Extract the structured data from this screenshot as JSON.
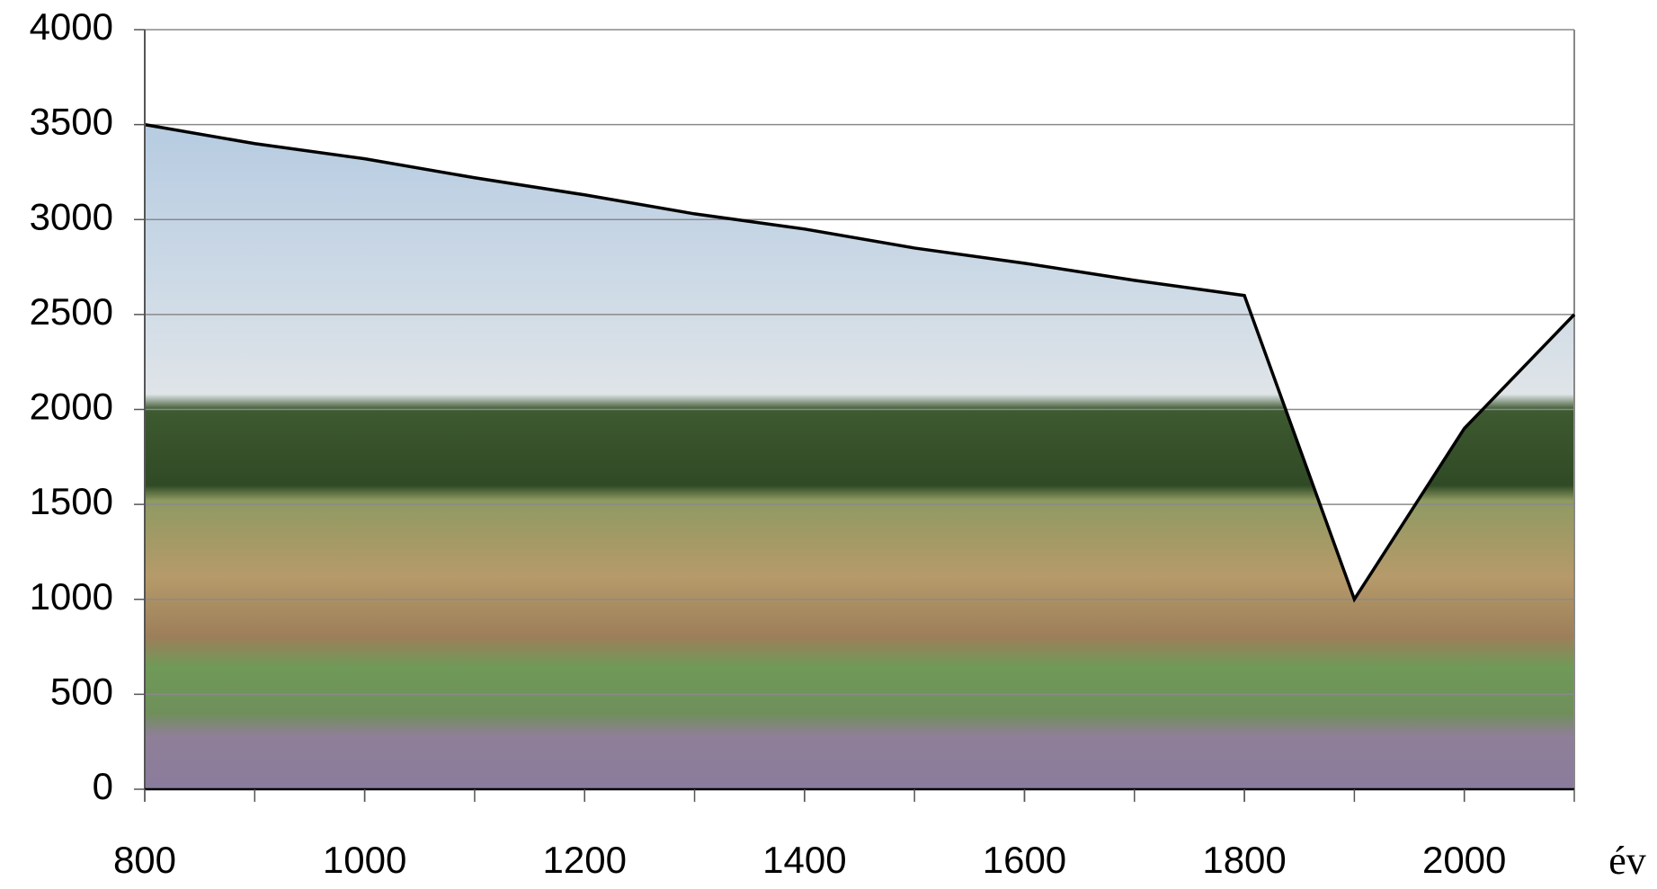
{
  "chart_data": {
    "type": "area",
    "x": [
      800,
      900,
      1000,
      1100,
      1200,
      1300,
      1400,
      1500,
      1600,
      1700,
      1800,
      1900,
      2000,
      2100
    ],
    "values": [
      3500,
      3400,
      3320,
      3220,
      3130,
      3030,
      2950,
      2850,
      2770,
      2680,
      2600,
      1000,
      1900,
      2500
    ],
    "xlabel": "év",
    "xlim": [
      800,
      2100
    ],
    "xticks": [
      800,
      1000,
      1200,
      1400,
      1600,
      1800,
      2000
    ],
    "ylim": [
      0,
      4000
    ],
    "yticks": [
      0,
      500,
      1000,
      1500,
      2000,
      2500,
      3000,
      3500,
      4000
    ],
    "grid": true,
    "color": "#000000"
  }
}
